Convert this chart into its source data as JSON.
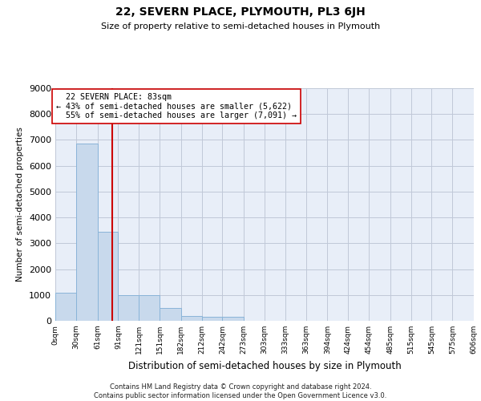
{
  "title": "22, SEVERN PLACE, PLYMOUTH, PL3 6JH",
  "subtitle": "Size of property relative to semi-detached houses in Plymouth",
  "xlabel": "Distribution of semi-detached houses by size in Plymouth",
  "ylabel": "Number of semi-detached properties",
  "property_size": 83,
  "property_label": "22 SEVERN PLACE: 83sqm",
  "pct_smaller": 43,
  "count_smaller": 5622,
  "pct_larger": 55,
  "count_larger": 7091,
  "bar_color": "#c8d9ec",
  "bar_edge_color": "#8ab4d8",
  "vline_color": "#cc0000",
  "grid_color": "#c0c8d8",
  "bg_color": "#e8eef8",
  "footer": "Contains HM Land Registry data © Crown copyright and database right 2024.\nContains public sector information licensed under the Open Government Licence v3.0.",
  "bin_edges": [
    0,
    30,
    61,
    91,
    121,
    151,
    182,
    212,
    242,
    273,
    303,
    333,
    363,
    394,
    424,
    454,
    485,
    515,
    545,
    575,
    606
  ],
  "bin_labels": [
    "0sqm",
    "30sqm",
    "61sqm",
    "91sqm",
    "121sqm",
    "151sqm",
    "182sqm",
    "212sqm",
    "242sqm",
    "273sqm",
    "303sqm",
    "333sqm",
    "363sqm",
    "394sqm",
    "424sqm",
    "454sqm",
    "485sqm",
    "515sqm",
    "545sqm",
    "575sqm",
    "606sqm"
  ],
  "counts": [
    1100,
    6850,
    3450,
    1000,
    1000,
    500,
    200,
    170,
    170,
    0,
    0,
    0,
    0,
    0,
    0,
    0,
    0,
    0,
    0,
    0
  ],
  "ylim": [
    0,
    9000
  ],
  "yticks": [
    0,
    1000,
    2000,
    3000,
    4000,
    5000,
    6000,
    7000,
    8000,
    9000
  ]
}
